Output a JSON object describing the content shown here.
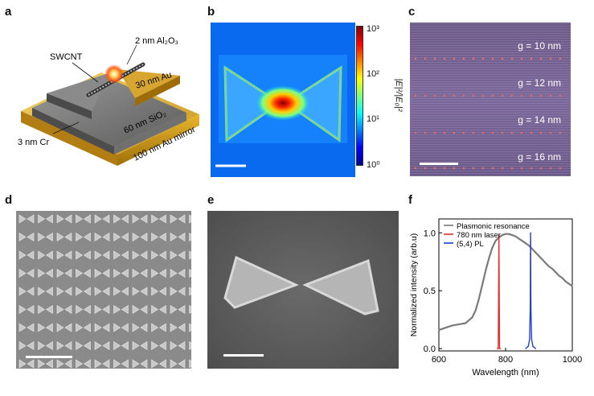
{
  "panels": {
    "a": {
      "label": "a",
      "annotations": {
        "al2o3": "2 nm Al₂O₃",
        "swcnt": "SWCNT",
        "au30": "30 nm Au",
        "sio2": "60 nm SiO₂",
        "cr": "3 nm Cr",
        "mirror": "100 nm Au mirror"
      }
    },
    "b": {
      "label": "b",
      "colorbar": {
        "ticks": [
          "10³",
          "10²",
          "10¹",
          "10⁰"
        ],
        "axis_label": "|E|²/|E₀|²",
        "colors": [
          "#7f0000",
          "#ff0000",
          "#ff8000",
          "#ffff00",
          "#80ff80",
          "#00ffff",
          "#0080ff",
          "#0000ff",
          "#00008f"
        ]
      }
    },
    "c": {
      "label": "c",
      "gaps": [
        "g = 10 nm",
        "g = 12 nm",
        "g = 14 nm",
        "g = 16 nm"
      ]
    },
    "d": {
      "label": "d"
    },
    "e": {
      "label": "e"
    },
    "f": {
      "label": "f"
    }
  },
  "chart_data": {
    "type": "line",
    "title": "",
    "xlabel": "Wavelength (nm)",
    "ylabel": "Normalized intensity (arb.u)",
    "xlim": [
      600,
      1000
    ],
    "ylim": [
      -0.02,
      1.12
    ],
    "xticks": [
      600,
      800,
      1000
    ],
    "yticks": [
      0.0,
      0.5,
      1.0
    ],
    "xtick_labels": [
      "600",
      "800",
      "1000"
    ],
    "ytick_labels": [
      "0.0",
      "0.5",
      "1.0"
    ],
    "legend_position": "top-right",
    "series": [
      {
        "name": "Plasmonic resonance",
        "color": "#7a7a7a",
        "x": [
          600,
          620,
          640,
          660,
          680,
          700,
          710,
          720,
          730,
          740,
          750,
          760,
          770,
          780,
          790,
          800,
          810,
          820,
          830,
          840,
          850,
          860,
          870,
          880,
          890,
          900,
          910,
          920,
          930,
          940,
          950,
          960,
          970,
          980,
          990,
          1000
        ],
        "y": [
          0.16,
          0.18,
          0.2,
          0.21,
          0.22,
          0.27,
          0.33,
          0.43,
          0.55,
          0.67,
          0.78,
          0.87,
          0.93,
          0.96,
          0.98,
          0.99,
          0.99,
          0.98,
          0.97,
          0.95,
          0.93,
          0.91,
          0.89,
          0.86,
          0.83,
          0.8,
          0.77,
          0.74,
          0.71,
          0.69,
          0.66,
          0.63,
          0.61,
          0.58,
          0.56,
          0.54
        ]
      },
      {
        "name": "780 nm laser",
        "color": "#e03030",
        "x": [
          775,
          778,
          780,
          782,
          785
        ],
        "y": [
          0.0,
          0.0,
          0.98,
          0.0,
          0.0
        ]
      },
      {
        "name": "(5,4) PL",
        "color": "#1f3fd0",
        "x": [
          860,
          868,
          872,
          874,
          875,
          876,
          878,
          882,
          890
        ],
        "y": [
          0.0,
          0.02,
          0.08,
          0.35,
          1.0,
          0.35,
          0.08,
          0.02,
          0.0
        ]
      }
    ]
  }
}
